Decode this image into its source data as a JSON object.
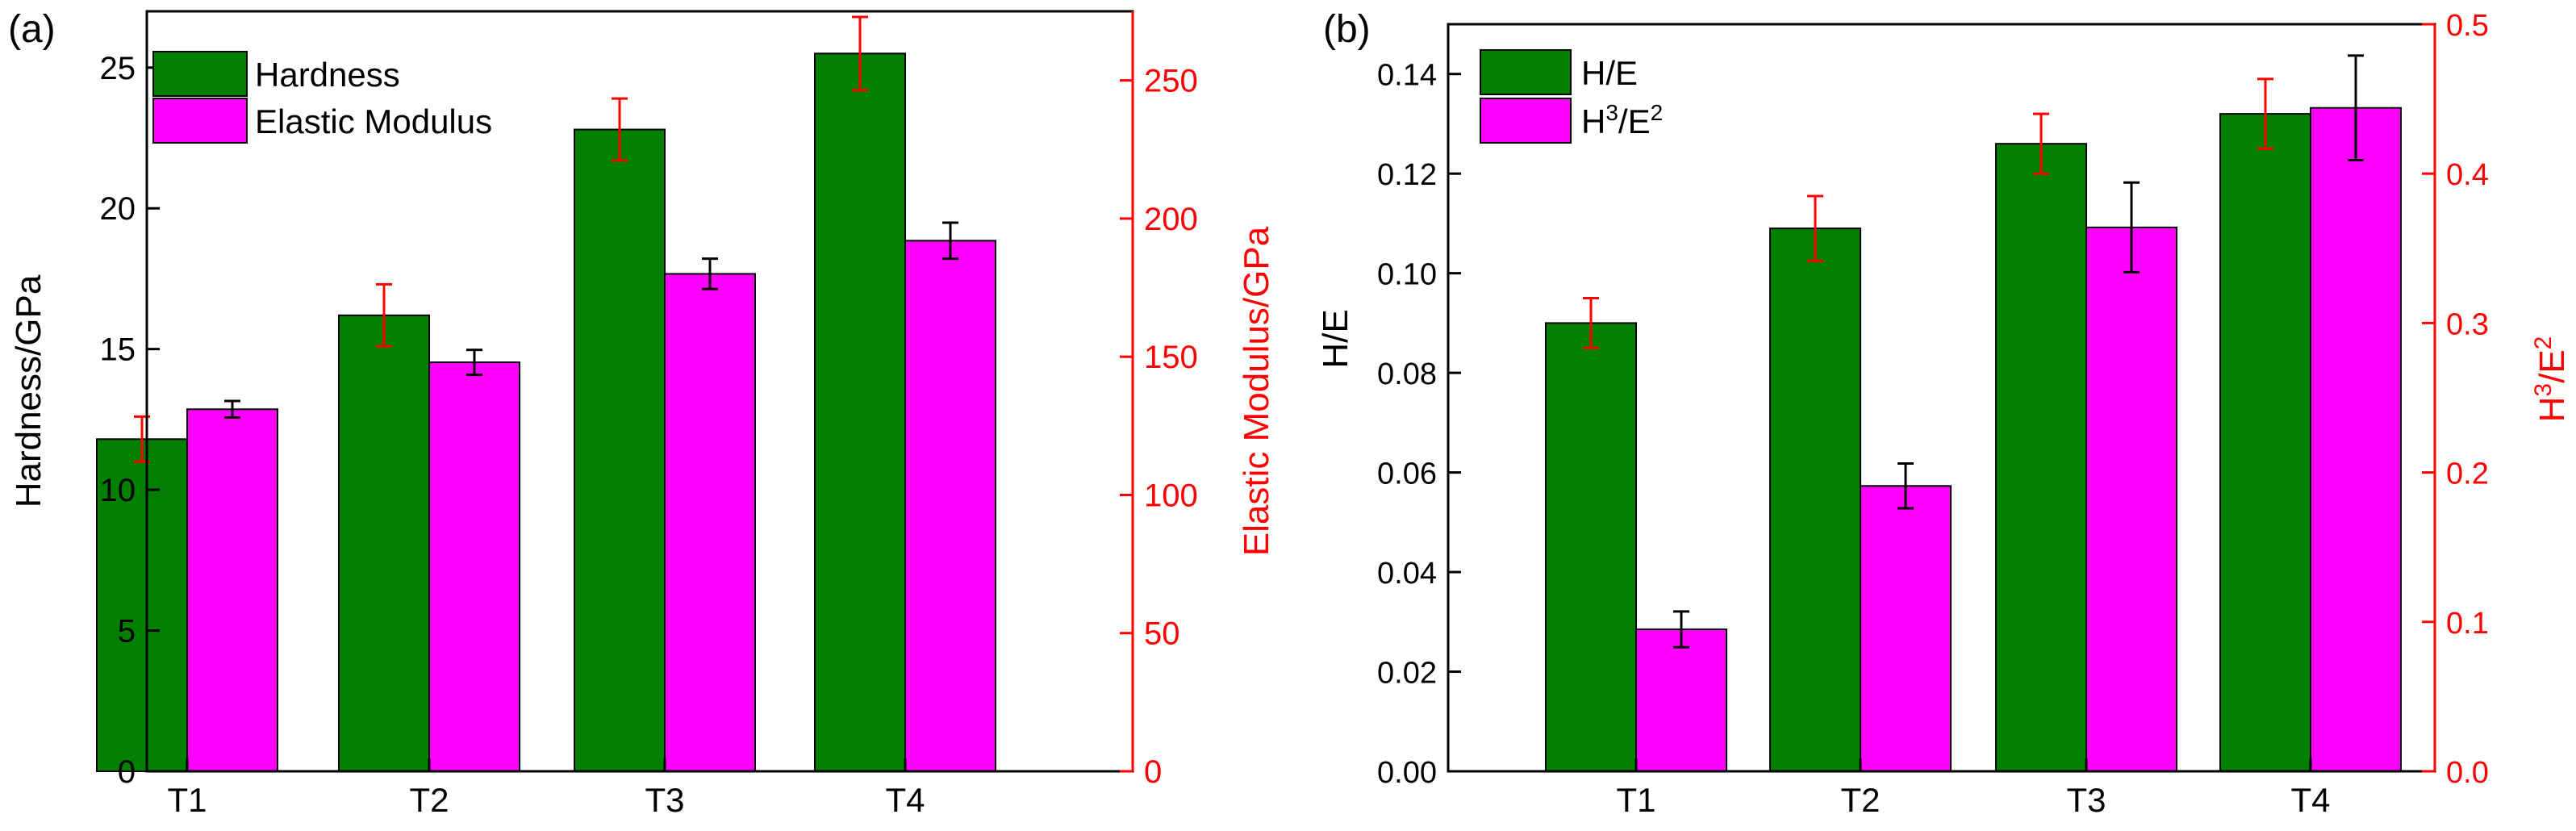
{
  "chart_data": [
    {
      "panel_label": "(a)",
      "type": "bar",
      "categories": [
        "T1",
        "T2",
        "T3",
        "T4"
      ],
      "ylabel": "Hardness/GPa",
      "y2label": "Elastic Modulus/GPa",
      "ylim": [
        0,
        27
      ],
      "y2lim": [
        0,
        275
      ],
      "yticks": [
        "0",
        "5",
        "10",
        "15",
        "20",
        "25"
      ],
      "y2ticks": [
        "0",
        "50",
        "100",
        "150",
        "200",
        "250"
      ],
      "legend_position": "top-left",
      "series": [
        {
          "name": "Hardness",
          "axis": "left",
          "color": "#007F00",
          "values": [
            11.8,
            16.2,
            22.8,
            25.5
          ],
          "errors": [
            0.8,
            1.1,
            1.1,
            1.3
          ],
          "error_color": "#FF0000"
        },
        {
          "name": "Elastic Modulus",
          "axis": "right",
          "color": "#FF00FF",
          "values": [
            131,
            148,
            180,
            192
          ],
          "errors": [
            3,
            4.5,
            5.5,
            6.5
          ],
          "error_color": "#000000"
        }
      ]
    },
    {
      "panel_label": "(b)",
      "type": "bar",
      "categories": [
        "T1",
        "T2",
        "T3",
        "T4"
      ],
      "ylabel": "H/E",
      "y2label_base": "H",
      "y2label_sup1": "3",
      "y2label_mid": "/E",
      "y2label_sup2": "2",
      "ylim": [
        0,
        0.15
      ],
      "y2lim": [
        0,
        0.5
      ],
      "yticks": [
        "0.00",
        "0.02",
        "0.04",
        "0.06",
        "0.08",
        "0.10",
        "0.12",
        "0.14"
      ],
      "y2ticks": [
        "0.0",
        "0.1",
        "0.2",
        "0.3",
        "0.4",
        "0.5"
      ],
      "legend_position": "top-left",
      "series": [
        {
          "name": "H/E",
          "axis": "left",
          "color": "#007F00",
          "values": [
            0.09,
            0.109,
            0.126,
            0.132
          ],
          "errors": [
            0.005,
            0.0065,
            0.006,
            0.007
          ],
          "error_color": "#FF0000"
        },
        {
          "name_base": "H",
          "name_sup1": "3",
          "name_mid": "/E",
          "name_sup2": "2",
          "axis": "right",
          "color": "#FF00FF",
          "values": [
            0.095,
            0.191,
            0.364,
            0.444
          ],
          "errors": [
            0.012,
            0.015,
            0.03,
            0.035
          ],
          "error_color": "#000000"
        }
      ]
    }
  ]
}
